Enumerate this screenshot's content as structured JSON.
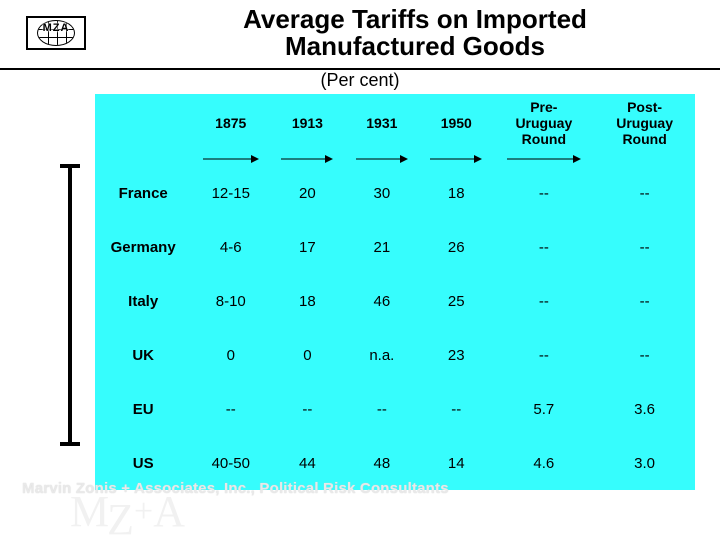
{
  "logo_text": "MZA",
  "title_line1": "Average Tariffs on Imported",
  "title_line2": "Manufactured Goods",
  "subtitle": "(Per cent)",
  "table": {
    "columns": [
      "",
      "1875",
      "1913",
      "1931",
      "1950",
      "Pre-\nUruguay\nRound",
      "Post-\nUruguay\nRound"
    ],
    "rows": [
      {
        "label": "France",
        "cells": [
          "12-15",
          "20",
          "30",
          "18",
          "--",
          "--"
        ]
      },
      {
        "label": "Germany",
        "cells": [
          "4-6",
          "17",
          "21",
          "26",
          "--",
          "--"
        ]
      },
      {
        "label": "Italy",
        "cells": [
          "8-10",
          "18",
          "46",
          "25",
          "--",
          "--"
        ]
      },
      {
        "label": "UK",
        "cells": [
          "0",
          "0",
          "n.a.",
          "23",
          "--",
          "--"
        ]
      },
      {
        "label": "EU",
        "cells": [
          "--",
          "--",
          "--",
          "--",
          "5.7",
          "3.6"
        ]
      },
      {
        "label": "US",
        "cells": [
          "40-50",
          "44",
          "48",
          "14",
          "4.6",
          "3.0"
        ]
      }
    ],
    "bg_color": "#36fdfd",
    "header_fontsize": 14,
    "body_fontsize": 15
  },
  "footer_text": "Marvin Zonis + Associates, Inc., Political Risk Consultants",
  "watermark": {
    "m": "M",
    "z": "Z",
    "plus": "+",
    "a": "A"
  }
}
